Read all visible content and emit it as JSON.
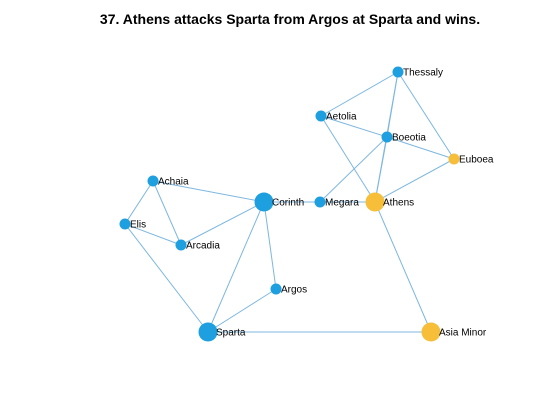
{
  "title": "37. Athens attacks Sparta from Argos at Sparta and wins.",
  "colors": {
    "background": "#ffffff",
    "edge": "#7db7e0",
    "node_default": "#1e9fe0",
    "node_highlight": "#f7be3a",
    "label": "#000000"
  },
  "graph": {
    "nodes": [
      {
        "id": "thessaly",
        "label": "Thessaly",
        "size": "small",
        "highlight": false
      },
      {
        "id": "aetolia",
        "label": "Aetolia",
        "size": "small",
        "highlight": false
      },
      {
        "id": "boeotia",
        "label": "Boeotia",
        "size": "small",
        "highlight": false
      },
      {
        "id": "euboea",
        "label": "Euboea",
        "size": "small",
        "highlight": true
      },
      {
        "id": "achaia",
        "label": "Achaia",
        "size": "small",
        "highlight": false
      },
      {
        "id": "corinth",
        "label": "Corinth",
        "size": "large",
        "highlight": false
      },
      {
        "id": "megara",
        "label": "Megara",
        "size": "small",
        "highlight": false
      },
      {
        "id": "athens",
        "label": "Athens",
        "size": "large",
        "highlight": true
      },
      {
        "id": "elis",
        "label": "Elis",
        "size": "small",
        "highlight": false
      },
      {
        "id": "arcadia",
        "label": "Arcadia",
        "size": "small",
        "highlight": false
      },
      {
        "id": "argos",
        "label": "Argos",
        "size": "small",
        "highlight": false
      },
      {
        "id": "sparta",
        "label": "Sparta",
        "size": "large",
        "highlight": false
      },
      {
        "id": "asia-minor",
        "label": "Asia Minor",
        "size": "large",
        "highlight": true
      }
    ],
    "edges": [
      [
        "thessaly",
        "aetolia"
      ],
      [
        "thessaly",
        "boeotia"
      ],
      [
        "thessaly",
        "euboea"
      ],
      [
        "thessaly",
        "athens"
      ],
      [
        "aetolia",
        "boeotia"
      ],
      [
        "aetolia",
        "athens"
      ],
      [
        "boeotia",
        "euboea"
      ],
      [
        "boeotia",
        "megara"
      ],
      [
        "boeotia",
        "athens"
      ],
      [
        "euboea",
        "athens"
      ],
      [
        "megara",
        "athens"
      ],
      [
        "corinth",
        "megara"
      ],
      [
        "athens",
        "asia-minor"
      ],
      [
        "achaia",
        "corinth"
      ],
      [
        "achaia",
        "elis"
      ],
      [
        "achaia",
        "arcadia"
      ],
      [
        "elis",
        "arcadia"
      ],
      [
        "elis",
        "sparta"
      ],
      [
        "arcadia",
        "corinth"
      ],
      [
        "corinth",
        "argos"
      ],
      [
        "corinth",
        "sparta"
      ],
      [
        "argos",
        "sparta"
      ],
      [
        "sparta",
        "asia-minor"
      ]
    ]
  }
}
